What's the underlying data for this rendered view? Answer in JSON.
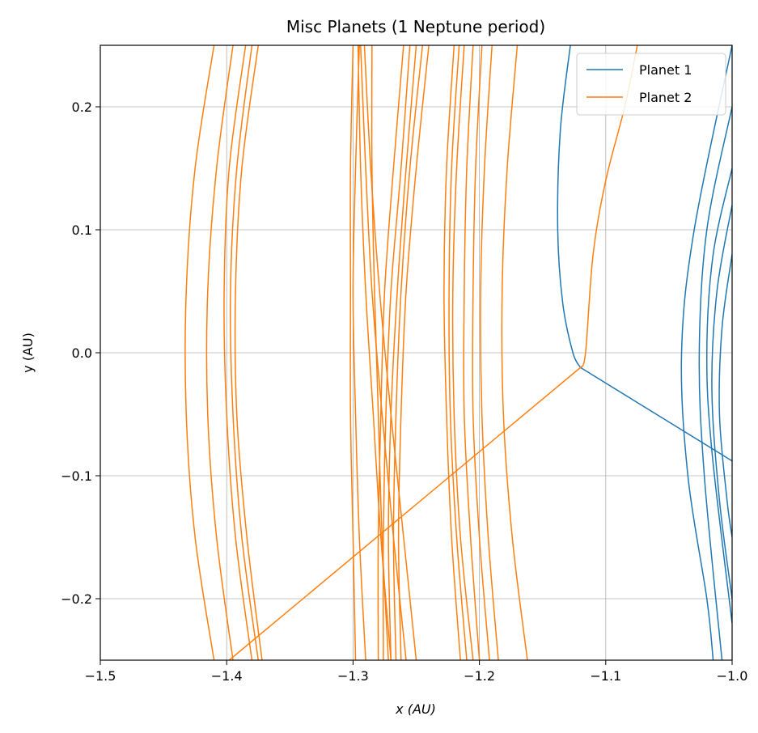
{
  "chart_data": {
    "type": "line",
    "title": "Misc Planets (1 Neptune period)",
    "xlabel": "x (AU)",
    "ylabel": "y (AU)",
    "xlim": [
      -1.5,
      -1.0
    ],
    "ylim": [
      -0.25,
      0.25
    ],
    "xticks": [
      -1.5,
      -1.4,
      -1.3,
      -1.2,
      -1.1,
      -1.0
    ],
    "xtick_labels": [
      "−1.5",
      "−1.4",
      "−1.3",
      "−1.2",
      "−1.1",
      "−1.0"
    ],
    "yticks": [
      -0.2,
      -0.1,
      0.0,
      0.1,
      0.2
    ],
    "ytick_labels": [
      "−0.2",
      "−0.1",
      "0.0",
      "0.1",
      "0.2"
    ],
    "grid": true,
    "legend_position": "top-right",
    "series": [
      {
        "name": "Planet 1",
        "color": "#1f77b4",
        "segments": [
          [
            [
              -1.128,
              0.25
            ],
            [
              -1.136,
              0.18
            ],
            [
              -1.138,
              0.1
            ],
            [
              -1.134,
              0.04
            ],
            [
              -1.126,
              0.0
            ],
            [
              -1.12,
              -0.012
            ]
          ],
          [
            [
              -1.12,
              -0.012
            ],
            [
              -1.06,
              -0.05
            ],
            [
              -1.0,
              -0.088
            ]
          ],
          [
            [
              -1.0,
              0.25
            ],
            [
              -1.03,
              0.1
            ],
            [
              -1.04,
              0.0
            ],
            [
              -1.035,
              -0.1
            ],
            [
              -1.02,
              -0.2
            ],
            [
              -1.015,
              -0.25
            ]
          ],
          [
            [
              -1.0,
              0.2
            ],
            [
              -1.02,
              0.1
            ],
            [
              -1.026,
              0.0
            ],
            [
              -1.022,
              -0.1
            ],
            [
              -1.008,
              -0.25
            ]
          ],
          [
            [
              -1.0,
              0.15
            ],
            [
              -1.015,
              0.08
            ],
            [
              -1.02,
              0.0
            ],
            [
              -1.016,
              -0.08
            ],
            [
              -1.0,
              -0.22
            ]
          ],
          [
            [
              -1.0,
              0.12
            ],
            [
              -1.012,
              0.05
            ],
            [
              -1.016,
              -0.03
            ],
            [
              -1.01,
              -0.12
            ],
            [
              -1.0,
              -0.2
            ]
          ],
          [
            [
              -1.0,
              0.08
            ],
            [
              -1.008,
              0.02
            ],
            [
              -1.01,
              -0.05
            ],
            [
              -1.004,
              -0.12
            ],
            [
              -1.0,
              -0.15
            ]
          ]
        ]
      },
      {
        "name": "Planet 2",
        "color": "#ff7f0e",
        "segments": [
          [
            [
              -1.398,
              -0.25
            ],
            [
              -1.12,
              -0.012
            ]
          ],
          [
            [
              -1.12,
              -0.012
            ],
            [
              -1.116,
              0.0
            ],
            [
              -1.11,
              0.08
            ],
            [
              -1.1,
              0.14
            ],
            [
              -1.085,
              0.2
            ],
            [
              -1.075,
              0.25
            ]
          ],
          [
            [
              -1.41,
              0.25
            ],
            [
              -1.425,
              0.15
            ],
            [
              -1.432,
              0.05
            ],
            [
              -1.432,
              -0.05
            ],
            [
              -1.425,
              -0.15
            ],
            [
              -1.41,
              -0.25
            ]
          ],
          [
            [
              -1.395,
              0.25
            ],
            [
              -1.408,
              0.15
            ],
            [
              -1.415,
              0.05
            ],
            [
              -1.415,
              -0.05
            ],
            [
              -1.408,
              -0.15
            ],
            [
              -1.395,
              -0.25
            ]
          ],
          [
            [
              -1.385,
              0.25
            ],
            [
              -1.398,
              0.15
            ],
            [
              -1.402,
              0.05
            ],
            [
              -1.4,
              -0.05
            ],
            [
              -1.393,
              -0.15
            ],
            [
              -1.38,
              -0.25
            ]
          ],
          [
            [
              -1.38,
              0.25
            ],
            [
              -1.392,
              0.15
            ],
            [
              -1.397,
              0.05
            ],
            [
              -1.395,
              -0.05
            ],
            [
              -1.388,
              -0.15
            ],
            [
              -1.375,
              -0.25
            ]
          ],
          [
            [
              -1.375,
              0.25
            ],
            [
              -1.388,
              0.15
            ],
            [
              -1.393,
              0.05
            ],
            [
              -1.392,
              -0.05
            ],
            [
              -1.384,
              -0.15
            ],
            [
              -1.372,
              -0.25
            ]
          ],
          [
            [
              -1.3,
              0.25
            ],
            [
              -1.302,
              0.15
            ],
            [
              -1.302,
              0.05
            ],
            [
              -1.302,
              -0.05
            ],
            [
              -1.3,
              -0.15
            ],
            [
              -1.298,
              -0.25
            ]
          ],
          [
            [
              -1.295,
              0.25
            ],
            [
              -1.298,
              0.15
            ],
            [
              -1.3,
              0.05
            ],
            [
              -1.298,
              -0.05
            ],
            [
              -1.295,
              -0.15
            ],
            [
              -1.29,
              -0.25
            ]
          ],
          [
            [
              -1.296,
              0.25
            ],
            [
              -1.294,
              0.15
            ],
            [
              -1.29,
              0.05
            ],
            [
              -1.284,
              -0.05
            ],
            [
              -1.278,
              -0.15
            ],
            [
              -1.27,
              -0.25
            ]
          ],
          [
            [
              -1.294,
              0.25
            ],
            [
              -1.29,
              0.15
            ],
            [
              -1.285,
              0.05
            ],
            [
              -1.277,
              -0.05
            ],
            [
              -1.268,
              -0.15
            ],
            [
              -1.258,
              -0.25
            ]
          ],
          [
            [
              -1.291,
              0.25
            ],
            [
              -1.286,
              0.15
            ],
            [
              -1.279,
              0.05
            ],
            [
              -1.27,
              -0.05
            ],
            [
              -1.26,
              -0.15
            ],
            [
              -1.25,
              -0.25
            ]
          ],
          [
            [
              -1.285,
              0.25
            ],
            [
              -1.285,
              0.15
            ],
            [
              -1.283,
              0.05
            ],
            [
              -1.28,
              -0.05
            ],
            [
              -1.277,
              -0.15
            ],
            [
              -1.272,
              -0.25
            ]
          ],
          [
            [
              -1.26,
              0.25
            ],
            [
              -1.268,
              0.15
            ],
            [
              -1.275,
              0.05
            ],
            [
              -1.278,
              -0.05
            ],
            [
              -1.28,
              -0.15
            ],
            [
              -1.28,
              -0.25
            ]
          ],
          [
            [
              -1.255,
              0.25
            ],
            [
              -1.262,
              0.15
            ],
            [
              -1.27,
              0.05
            ],
            [
              -1.274,
              -0.05
            ],
            [
              -1.276,
              -0.15
            ],
            [
              -1.276,
              -0.25
            ]
          ],
          [
            [
              -1.25,
              0.25
            ],
            [
              -1.258,
              0.15
            ],
            [
              -1.265,
              0.05
            ],
            [
              -1.27,
              -0.05
            ],
            [
              -1.272,
              -0.15
            ],
            [
              -1.27,
              -0.25
            ]
          ],
          [
            [
              -1.245,
              0.25
            ],
            [
              -1.255,
              0.15
            ],
            [
              -1.262,
              0.05
            ],
            [
              -1.266,
              -0.05
            ],
            [
              -1.268,
              -0.15
            ],
            [
              -1.266,
              -0.25
            ]
          ],
          [
            [
              -1.24,
              0.25
            ],
            [
              -1.25,
              0.15
            ],
            [
              -1.258,
              0.05
            ],
            [
              -1.262,
              -0.05
            ],
            [
              -1.264,
              -0.15
            ],
            [
              -1.262,
              -0.25
            ]
          ],
          [
            [
              -1.22,
              0.25
            ],
            [
              -1.226,
              0.15
            ],
            [
              -1.228,
              0.05
            ],
            [
              -1.226,
              -0.05
            ],
            [
              -1.222,
              -0.15
            ],
            [
              -1.215,
              -0.25
            ]
          ],
          [
            [
              -1.216,
              0.25
            ],
            [
              -1.222,
              0.15
            ],
            [
              -1.224,
              0.05
            ],
            [
              -1.223,
              -0.05
            ],
            [
              -1.218,
              -0.15
            ],
            [
              -1.21,
              -0.25
            ]
          ],
          [
            [
              -1.212,
              0.25
            ],
            [
              -1.218,
              0.15
            ],
            [
              -1.221,
              0.05
            ],
            [
              -1.22,
              -0.05
            ],
            [
              -1.215,
              -0.15
            ],
            [
              -1.205,
              -0.25
            ]
          ],
          [
            [
              -1.205,
              0.25
            ],
            [
              -1.21,
              0.15
            ],
            [
              -1.212,
              0.05
            ],
            [
              -1.212,
              -0.05
            ],
            [
              -1.207,
              -0.15
            ],
            [
              -1.2,
              -0.25
            ]
          ],
          [
            [
              -1.198,
              0.25
            ],
            [
              -1.203,
              0.15
            ],
            [
              -1.205,
              0.05
            ],
            [
              -1.205,
              -0.05
            ],
            [
              -1.2,
              -0.15
            ],
            [
              -1.192,
              -0.25
            ]
          ],
          [
            [
              -1.19,
              0.25
            ],
            [
              -1.196,
              0.15
            ],
            [
              -1.199,
              0.05
            ],
            [
              -1.198,
              -0.05
            ],
            [
              -1.193,
              -0.15
            ],
            [
              -1.185,
              -0.25
            ]
          ],
          [
            [
              -1.17,
              0.25
            ],
            [
              -1.178,
              0.15
            ],
            [
              -1.182,
              0.05
            ],
            [
              -1.181,
              -0.05
            ],
            [
              -1.174,
              -0.15
            ],
            [
              -1.162,
              -0.25
            ]
          ]
        ]
      }
    ]
  }
}
